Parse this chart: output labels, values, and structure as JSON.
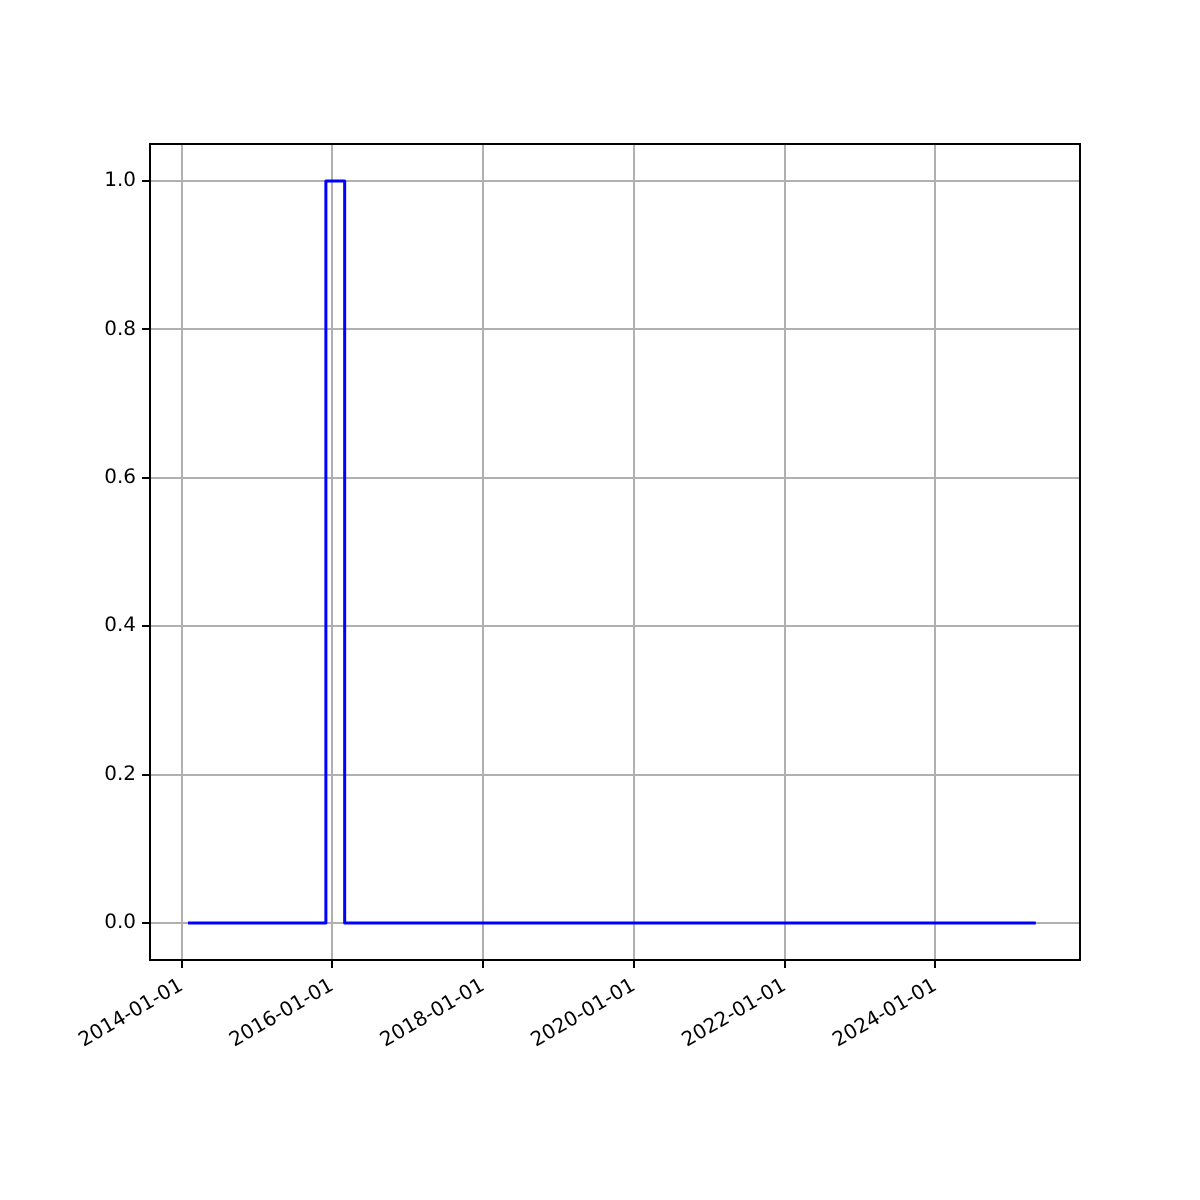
{
  "chart_data": {
    "type": "step",
    "x": [
      "2014-02",
      "2015-12",
      "2016-03",
      "2025-05"
    ],
    "series": [
      {
        "color": "#0000ff",
        "values": [
          0,
          1,
          0,
          0
        ]
      }
    ],
    "xlim": [
      "2013-08",
      "2025-12"
    ],
    "xticks": [
      "2014-01-01",
      "2016-01-01",
      "2018-01-01",
      "2020-01-01",
      "2022-01-01",
      "2024-01-01"
    ],
    "ylim": [
      -0.05,
      1.05
    ],
    "yticks": [
      {
        "value": 0,
        "label": "0.0"
      },
      {
        "value": 0.2,
        "label": "0.2"
      },
      {
        "value": 0.4,
        "label": "0.4"
      },
      {
        "value": 0.6,
        "label": "0.6"
      },
      {
        "value": 0.8,
        "label": "0.8"
      },
      {
        "value": 1,
        "label": "1.0"
      }
    ],
    "grid": true,
    "legend": false,
    "marker": "none",
    "line_style": "solid"
  }
}
